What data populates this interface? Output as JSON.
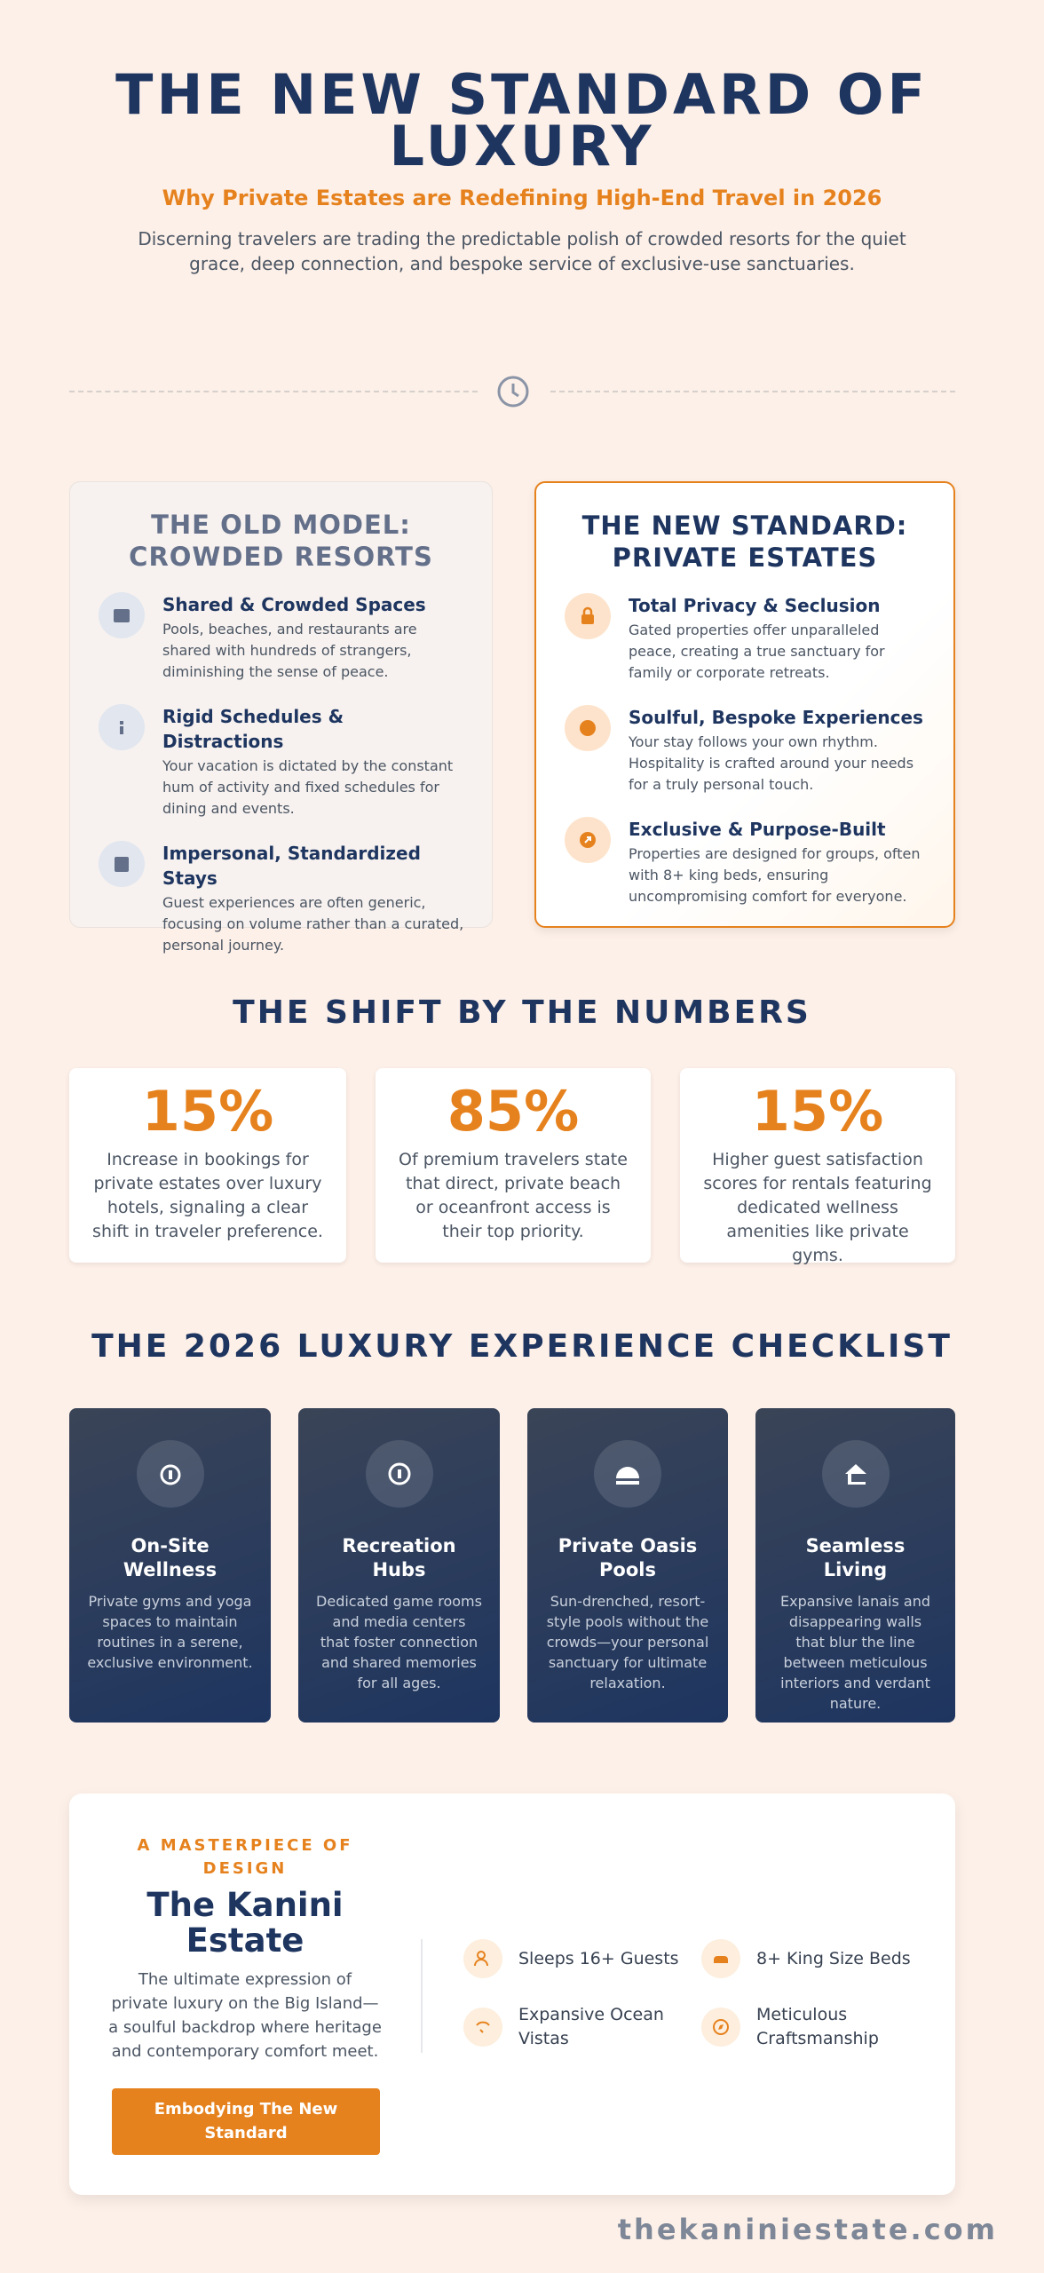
{
  "header": {
    "title": "THE NEW STANDARD OF LUXURY",
    "subtitle": "Why Private Estates are Redefining High-End Travel in 2026",
    "intro": "Discerning travelers are trading the predictable polish of crowded resorts for the quiet grace, deep connection, and bespoke service of exclusive-use sanctuaries."
  },
  "comparison": {
    "old": {
      "title": "THE OLD MODEL: CROWDED RESORTS",
      "items": [
        {
          "title": "Shared & Crowded Spaces",
          "text": "Pools, beaches, and restaurants are shared with hundreds of strangers, diminishing the sense of peace."
        },
        {
          "title": "Rigid Schedules & Distractions",
          "text": "Your vacation is dictated by the constant hum of activity and fixed schedules for dining and events."
        },
        {
          "title": "Impersonal, Standardized Stays",
          "text": "Guest experiences are often generic, focusing on volume rather than a curated, personal journey."
        }
      ]
    },
    "new": {
      "title": "THE NEW STANDARD: PRIVATE ESTATES",
      "items": [
        {
          "title": "Total Privacy & Seclusion",
          "text": "Gated properties offer unparalleled peace, creating a true sanctuary for family or corporate retreats."
        },
        {
          "title": "Soulful, Bespoke Experiences",
          "text": "Your stay follows your own rhythm. Hospitality is crafted around your needs for a truly personal touch."
        },
        {
          "title": "Exclusive & Purpose-Built",
          "text": "Properties are designed for groups, often with 8+ king beds, ensuring uncompromising comfort for everyone."
        }
      ]
    }
  },
  "numbers": {
    "title": "THE SHIFT BY THE NUMBERS",
    "stats": [
      {
        "value": "15%",
        "text": "Increase in bookings for private estates over luxury hotels, signaling a clear shift in traveler preference."
      },
      {
        "value": "85%",
        "text": "Of premium travelers state that direct, private beach or oceanfront access is their top priority."
      },
      {
        "value": "15%",
        "text": "Higher guest satisfaction scores for rentals featuring dedicated wellness amenities like private gyms."
      }
    ]
  },
  "checklist": {
    "title": "THE 2026 LUXURY EXPERIENCE CHECKLIST",
    "items": [
      {
        "title": "On-Site Wellness",
        "text": "Private gyms and yoga spaces to maintain routines in a serene, exclusive environment."
      },
      {
        "title": "Recreation Hubs",
        "text": "Dedicated game rooms and media centers that foster connection and shared memories for all ages."
      },
      {
        "title": "Private Oasis Pools",
        "text": "Sun-drenched, resort-style pools without the crowds—your personal sanctuary for ultimate relaxation."
      },
      {
        "title": "Seamless Living",
        "text": "Expansive lanais and disappearing walls that blur the line between meticulous interiors and verdant nature."
      }
    ]
  },
  "feature": {
    "eyebrow": "A MASTERPIECE OF DESIGN",
    "title": "The Kanini Estate",
    "text": "The ultimate expression of private luxury on the Big Island—a soulful backdrop where heritage and contemporary comfort meet.",
    "button": "Embodying The New Standard",
    "highlights": [
      "Sleeps 16+ Guests",
      "8+ King Size Beds",
      "Expansive Ocean Vistas",
      "Meticulous Craftsmanship"
    ]
  },
  "footer": {
    "domain": "thekaniniestate.com"
  }
}
